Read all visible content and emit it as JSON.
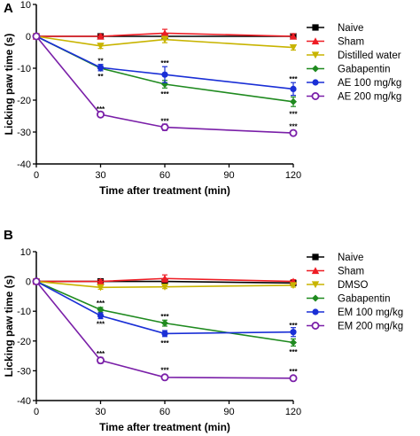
{
  "chart_data": [
    {
      "panel": "A",
      "type": "line",
      "xlabel": "Time after treatment (min)",
      "ylabel": "Licking paw time (s)",
      "x": [
        0,
        30,
        60,
        120
      ],
      "xlim": [
        0,
        120
      ],
      "ylim": [
        -40,
        10
      ],
      "xticks": [
        0,
        30,
        60,
        90,
        120
      ],
      "yticks": [
        10,
        0,
        -10,
        -20,
        -30,
        -40
      ],
      "legend_position": "right",
      "series": [
        {
          "name": "Naive",
          "color": "#000000",
          "marker": "square",
          "values": [
            0,
            0,
            0,
            0
          ],
          "errors": [
            0,
            0.5,
            0.5,
            0.5
          ]
        },
        {
          "name": "Sham",
          "color": "#ee1c24",
          "marker": "triangle-up",
          "values": [
            0,
            0,
            1,
            0
          ],
          "errors": [
            0,
            0.6,
            1.2,
            0.8
          ]
        },
        {
          "name": "Distilled water",
          "color": "#c8b400",
          "marker": "triangle-down",
          "values": [
            0,
            -3,
            -1,
            -3.5
          ],
          "errors": [
            0,
            0.8,
            1.0,
            0.8
          ]
        },
        {
          "name": "Gabapentin",
          "color": "#1f8a1f",
          "marker": "diamond",
          "values": [
            0,
            -10,
            -15,
            -20.5
          ],
          "errors": [
            0,
            0.8,
            1.2,
            1.5
          ]
        },
        {
          "name": "AE 100 mg/kg",
          "color": "#1a2fd6",
          "marker": "circle",
          "values": [
            0,
            -9.8,
            -12,
            -16.5
          ],
          "errors": [
            0,
            1.0,
            2.5,
            2.0
          ]
        },
        {
          "name": "AE 200 mg/kg",
          "color": "#7a1fa8",
          "marker": "open-circle",
          "values": [
            0,
            -24.5,
            -28.5,
            -30.3
          ],
          "errors": [
            0,
            0.8,
            1.0,
            0.8
          ]
        }
      ],
      "annotations": [
        {
          "x": 30,
          "y": -7.7,
          "text": "**"
        },
        {
          "x": 30,
          "y": -12.5,
          "text": "**"
        },
        {
          "x": 30,
          "y": -22.8,
          "text": "***"
        },
        {
          "x": 60,
          "y": -8.3,
          "text": "***"
        },
        {
          "x": 60,
          "y": -18,
          "text": "***"
        },
        {
          "x": 60,
          "y": -26.5,
          "text": "***"
        },
        {
          "x": 120,
          "y": -13.4,
          "text": "***"
        },
        {
          "x": 120,
          "y": -24.3,
          "text": "***"
        },
        {
          "x": 120,
          "y": -28.2,
          "text": "***"
        }
      ]
    },
    {
      "panel": "B",
      "type": "line",
      "xlabel": "Time after treatment (min)",
      "ylabel": "Licking paw time (s)",
      "x": [
        0,
        30,
        60,
        120
      ],
      "xlim": [
        0,
        120
      ],
      "ylim": [
        -40,
        10
      ],
      "xticks": [
        0,
        30,
        60,
        90,
        120
      ],
      "yticks": [
        10,
        0,
        -10,
        -20,
        -30,
        -40
      ],
      "legend_position": "right",
      "series": [
        {
          "name": "Naive",
          "color": "#000000",
          "marker": "square",
          "values": [
            0,
            0,
            0,
            -0.5
          ],
          "errors": [
            0,
            0.5,
            0.5,
            0.5
          ]
        },
        {
          "name": "Sham",
          "color": "#ee1c24",
          "marker": "triangle-up",
          "values": [
            0,
            0,
            1,
            0
          ],
          "errors": [
            0,
            0.6,
            1.2,
            0.6
          ]
        },
        {
          "name": "DMSO",
          "color": "#c8b400",
          "marker": "triangle-down",
          "values": [
            0,
            -2,
            -1.8,
            -1.3
          ],
          "errors": [
            0,
            0.6,
            0.6,
            0.6
          ]
        },
        {
          "name": "Gabapentin",
          "color": "#1f8a1f",
          "marker": "diamond",
          "values": [
            0,
            -9.5,
            -14,
            -20.5
          ],
          "errors": [
            0,
            0.8,
            1.0,
            1.2
          ]
        },
        {
          "name": "EM 100 mg/kg",
          "color": "#1a2fd6",
          "marker": "circle",
          "values": [
            0,
            -11.5,
            -17.5,
            -17
          ],
          "errors": [
            0,
            1.0,
            1.0,
            1.5
          ]
        },
        {
          "name": "EM 200 mg/kg",
          "color": "#7a1fa8",
          "marker": "open-circle",
          "values": [
            0,
            -26.5,
            -32.2,
            -32.5
          ],
          "errors": [
            0,
            1.0,
            0.8,
            0.8
          ]
        }
      ],
      "annotations": [
        {
          "x": 30,
          "y": -7.2,
          "text": "***"
        },
        {
          "x": 30,
          "y": -14.2,
          "text": "***"
        },
        {
          "x": 30,
          "y": -24.2,
          "text": "***"
        },
        {
          "x": 60,
          "y": -11.8,
          "text": "***"
        },
        {
          "x": 60,
          "y": -20.6,
          "text": "***"
        },
        {
          "x": 60,
          "y": -29.7,
          "text": "***"
        },
        {
          "x": 120,
          "y": -14.7,
          "text": "***"
        },
        {
          "x": 120,
          "y": -23.7,
          "text": "***"
        },
        {
          "x": 120,
          "y": -30.2,
          "text": "***"
        }
      ]
    }
  ]
}
